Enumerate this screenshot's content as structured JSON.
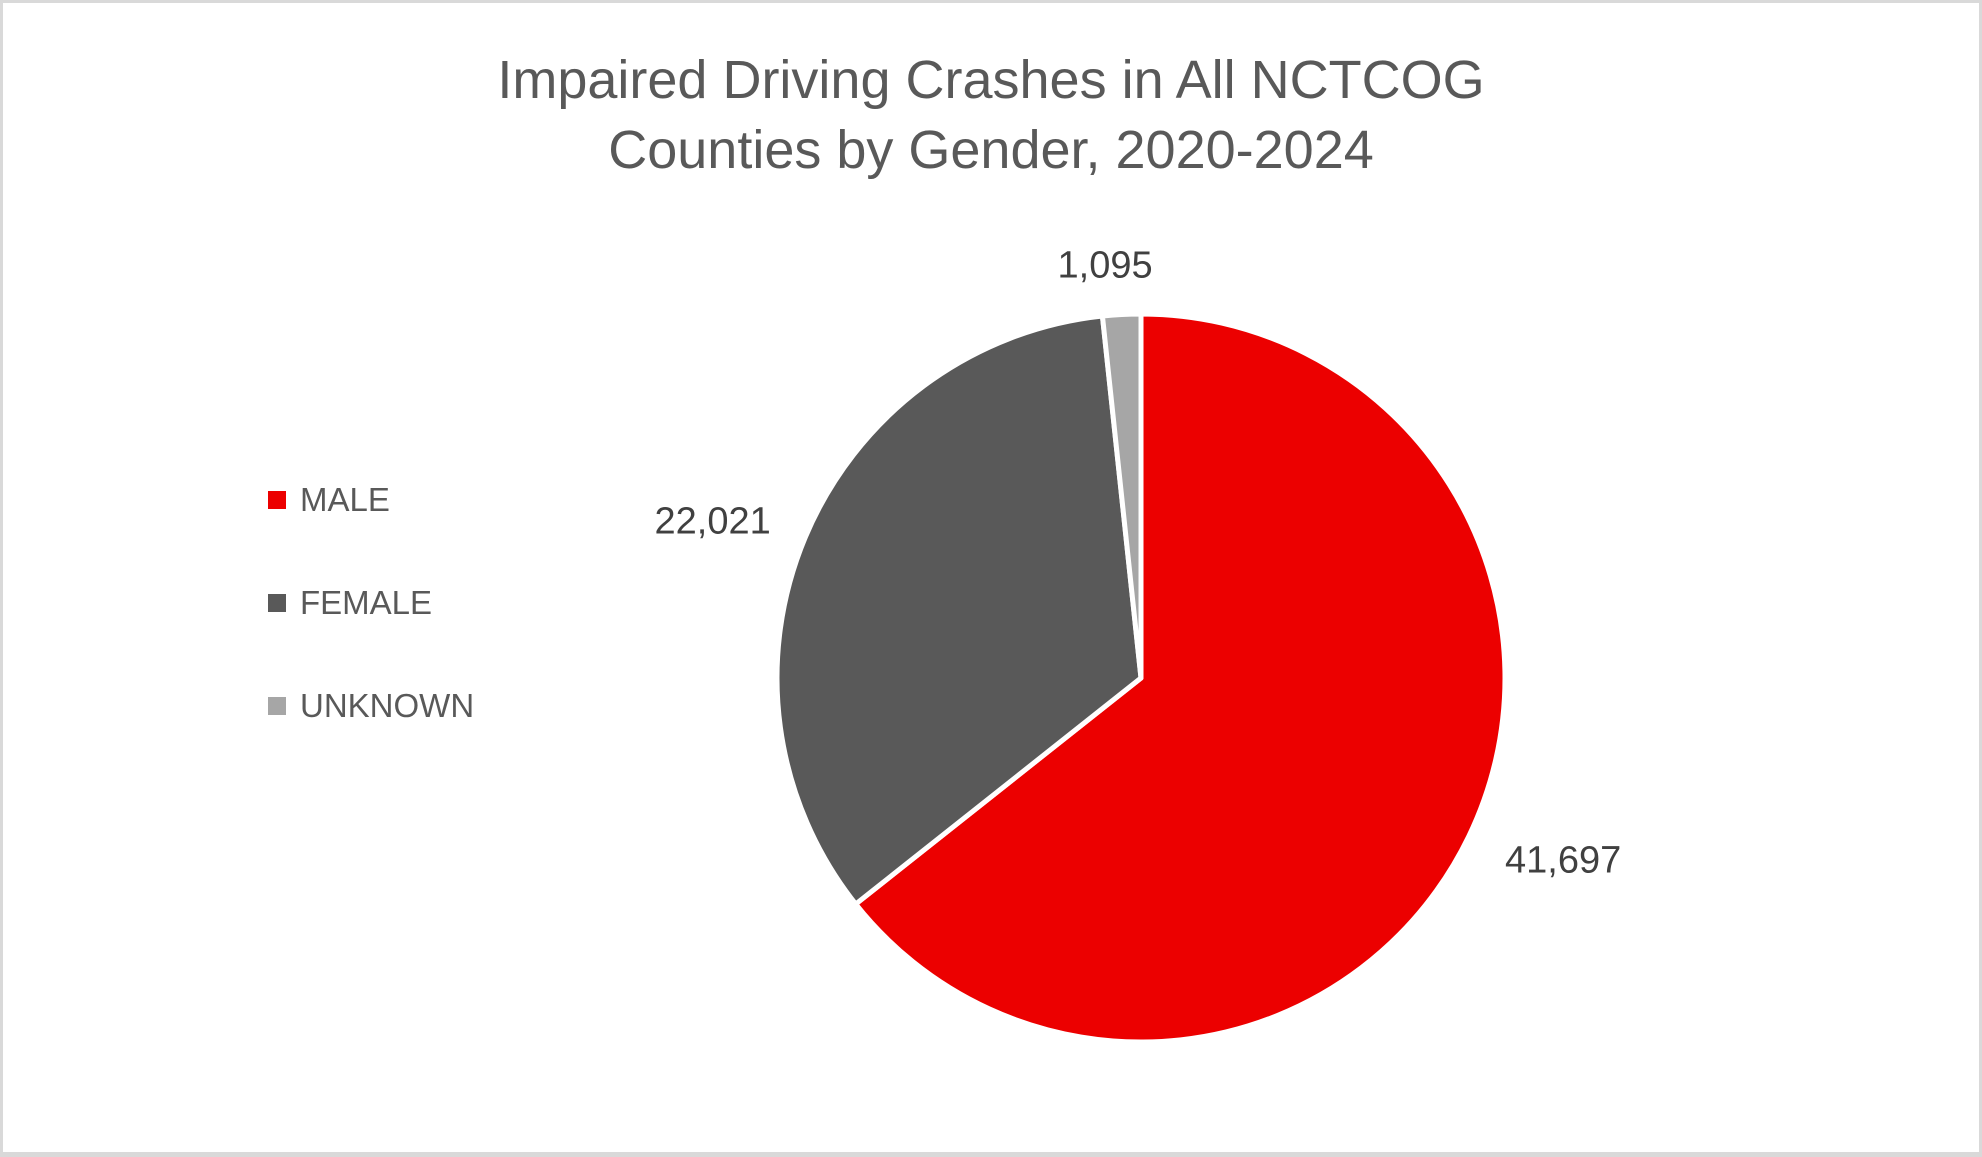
{
  "title": {
    "line1": "Impaired Driving Crashes in All NCTCOG",
    "line2": "Counties by Gender, 2020-2024"
  },
  "chart_data": {
    "type": "pie",
    "title": "Impaired Driving Crashes in All NCTCOG Counties by Gender, 2020-2024",
    "categories": [
      "MALE",
      "FEMALE",
      "UNKNOWN"
    ],
    "values": [
      41697,
      22021,
      1095
    ],
    "value_labels": [
      "41,697",
      "22,021",
      "1,095"
    ],
    "colors": [
      "#ec0000",
      "#595959",
      "#a6a6a6"
    ],
    "legend_position": "left",
    "start_angle_deg": 0,
    "direction": "clockwise",
    "slice_separator_color": "#ffffff"
  },
  "colors": {
    "canvas_border": "#d9d9d9",
    "title_text": "#595959",
    "legend_text": "#595959",
    "data_label_text": "#404040",
    "background": "#ffffff"
  }
}
